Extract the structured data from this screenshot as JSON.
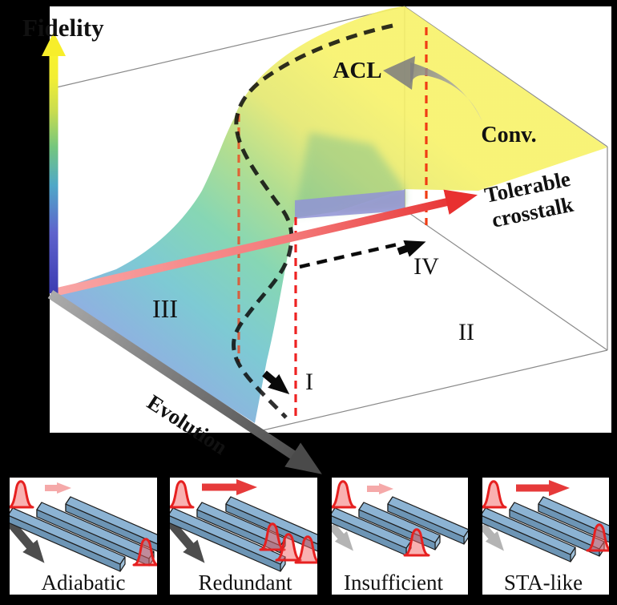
{
  "figure": {
    "plot": {
      "axis_labels": {
        "fidelity": "Fidelity",
        "crosstalk_line1": "Tolerable",
        "crosstalk_line2": "crosstalk",
        "evolution": "Evolution"
      },
      "annotations": {
        "acl": "ACL",
        "conv": "Conv."
      },
      "regions": {
        "r1": "I",
        "r2": "II",
        "r3": "III",
        "r4": "IV"
      }
    },
    "panels": [
      {
        "label": "Adiabatic",
        "input_arrow": "weak-red",
        "evolution_arrow": "strong-gray",
        "output_pulses": 1
      },
      {
        "label": "Redundant",
        "input_arrow": "strong-red",
        "evolution_arrow": "strong-gray",
        "output_pulses": 3
      },
      {
        "label": "Insufficient",
        "input_arrow": "weak-red",
        "evolution_arrow": "weak-gray",
        "output_pulses": 1
      },
      {
        "label": "STA-like",
        "input_arrow": "strong-red",
        "evolution_arrow": "weak-gray",
        "output_pulses": 1
      }
    ],
    "colors": {
      "background": "#000000",
      "plot_bg": "#ffffff",
      "tolerable_axis": "#e83838",
      "fidelity_axis_top": "#f7f22e",
      "evolution_axis": "#5a5a5a",
      "dashed_marker": "#f03c14",
      "trajectory": "#111111",
      "surface_low": "#8f8cd9",
      "surface_high": "#f7f268",
      "waveguide_top": "#8cb3d3",
      "pulse": "#e62020"
    }
  }
}
